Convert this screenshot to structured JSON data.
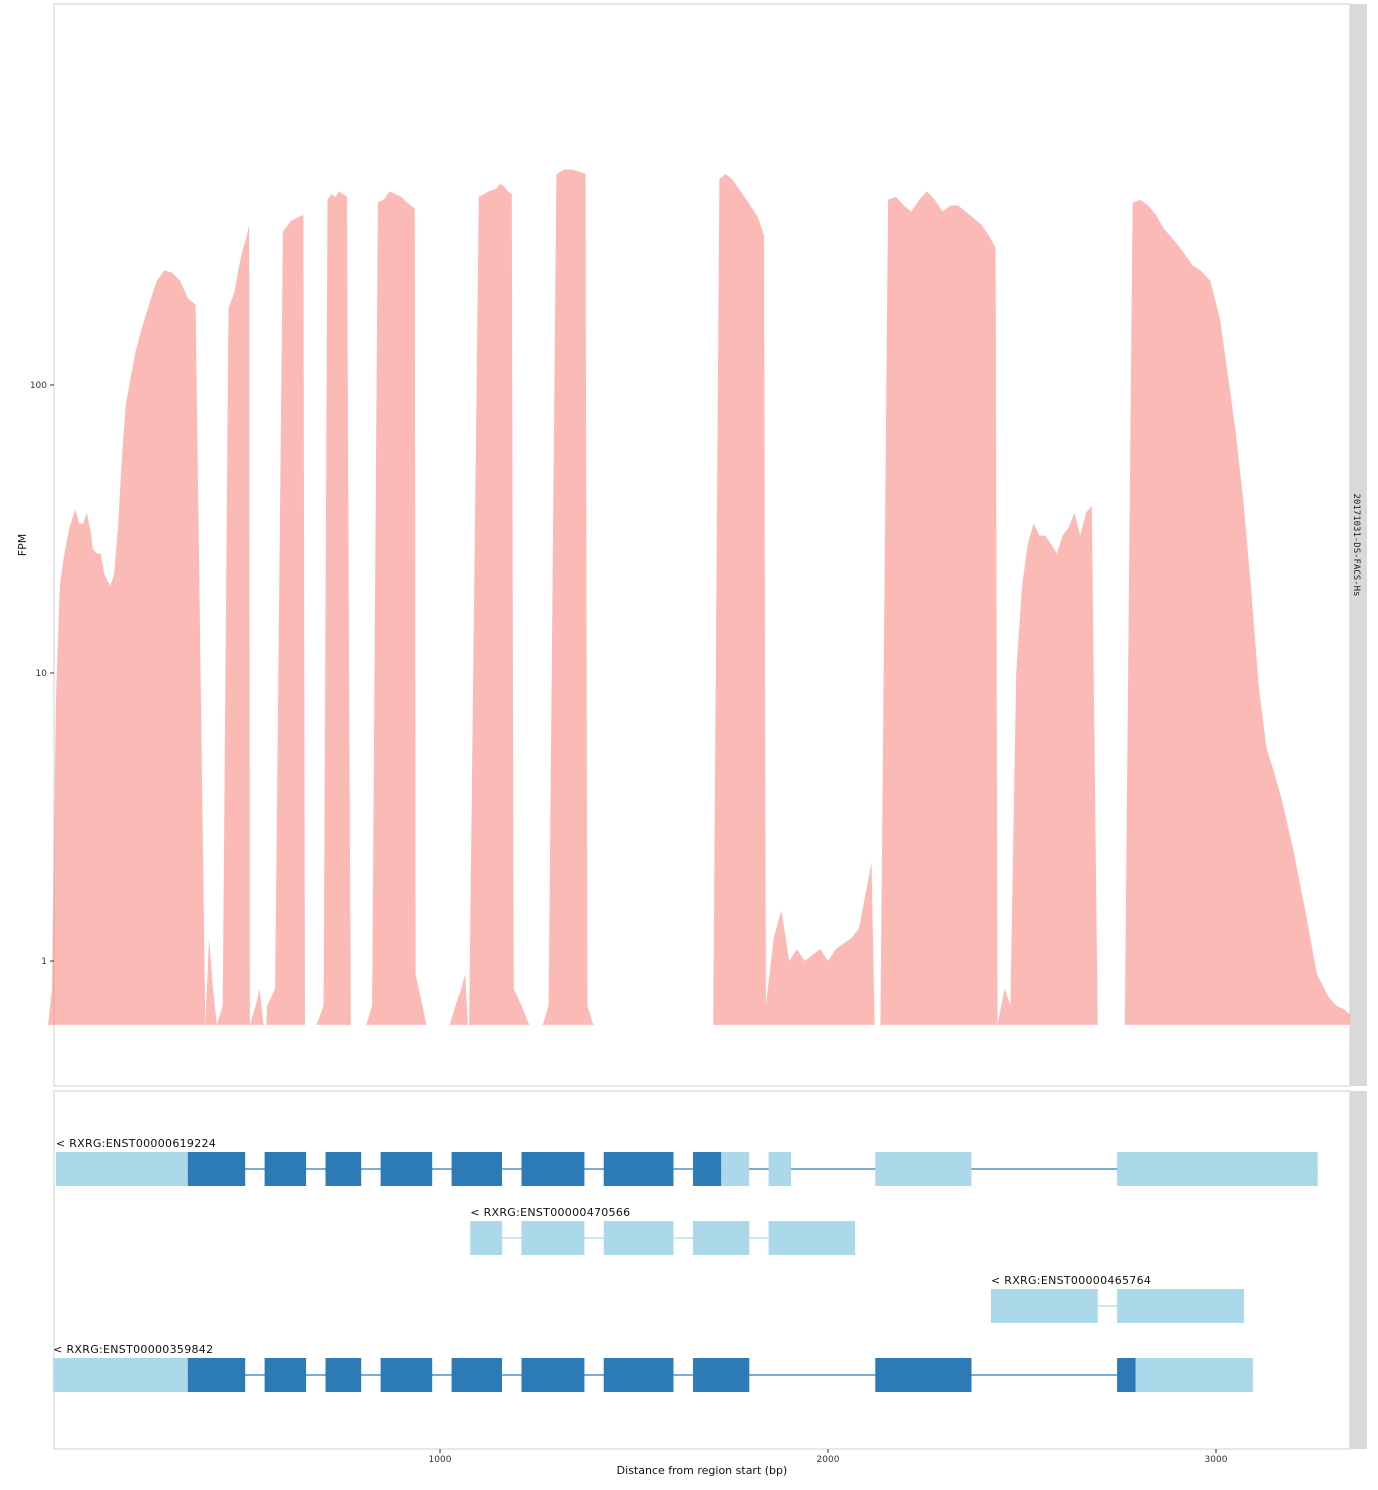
{
  "chart_data": [
    {
      "type": "area",
      "panel": "coverage",
      "title": "",
      "ylabel": "FPM",
      "xlabel": "",
      "yscale": "log10",
      "ylim": [
        0.6,
        600
      ],
      "xlim": [
        -45,
        3400
      ],
      "grid": false,
      "yticks": [
        {
          "value": 1,
          "label": "1"
        },
        {
          "value": 10,
          "label": "10"
        },
        {
          "value": 100,
          "label": "100"
        }
      ],
      "facet_label": "20171031-DS-FACS-Hs",
      "fill_color": "#F8766D",
      "fill_opacity": 0.5,
      "series": [
        {
          "x": [
            -10,
            0,
            10,
            20,
            30,
            45,
            60,
            70,
            80,
            90,
            95,
            100,
            105,
            115,
            125,
            135,
            150,
            160,
            170,
            180,
            190,
            205,
            215,
            230,
            250,
            270,
            290,
            310,
            330,
            350,
            370,
            395,
            405,
            415,
            425,
            440,
            455,
            470,
            480,
            490,
            500,
            508,
            510,
            525,
            535,
            545,
            552,
            555,
            575,
            595,
            615,
            630,
            648,
            652,
            664,
            670,
            680,
            682,
            700,
            710,
            720,
            730,
            740,
            750,
            760,
            770,
            772,
            790,
            800,
            808,
            810,
            825,
            840,
            855,
            870,
            885,
            900,
            915,
            925,
            935,
            937,
            945,
            955,
            965,
            975,
            985,
            995,
            1005,
            1015,
            1025,
            1040,
            1055,
            1065,
            1072,
            1075,
            1100,
            1125,
            1145,
            1155,
            1165,
            1175,
            1185,
            1190,
            1210,
            1230,
            1245,
            1262,
            1265,
            1280,
            1300,
            1320,
            1340,
            1360,
            1375,
            1380,
            1395,
            1410,
            1430,
            1450,
            1470,
            1475,
            1495,
            1515,
            1535,
            1550,
            1565,
            1580,
            1595,
            1607,
            1612,
            1627,
            1642,
            1657,
            1672,
            1685,
            1688,
            1704,
            1720,
            1736,
            1752,
            1770,
            1790,
            1805,
            1820,
            1835,
            1840,
            1860,
            1880,
            1900,
            1920,
            1940,
            1960,
            1980,
            2000,
            2020,
            2040,
            2060,
            2080,
            2100,
            2112,
            2120,
            2130,
            2135,
            2155,
            2175,
            2195,
            2215,
            2235,
            2255,
            2275,
            2295,
            2315,
            2335,
            2355,
            2375,
            2395,
            2415,
            2432,
            2437,
            2455,
            2470,
            2485,
            2500,
            2515,
            2530,
            2545,
            2560,
            2575,
            2590,
            2605,
            2620,
            2635,
            2650,
            2665,
            2680,
            2695,
            2710,
            2730,
            2745,
            2758,
            2765,
            2785,
            2805,
            2825,
            2845,
            2865,
            2890,
            2915,
            2940,
            2960,
            2985,
            3010,
            3030,
            3050,
            3070,
            3090,
            3110,
            3130,
            3150,
            3170,
            3200,
            3230,
            3260,
            3290,
            3310,
            3330,
            3340,
            3350,
            3362
          ],
          "y": [
            0.6,
            0.8,
            8,
            20,
            25,
            32,
            37,
            33,
            33,
            36,
            33,
            31,
            27,
            26,
            26,
            22,
            20,
            22,
            32,
            55,
            85,
            110,
            130,
            155,
            190,
            230,
            250,
            245,
            230,
            200,
            190,
            0.6,
            1.2,
            0.8,
            0.6,
            0.7,
            185,
            210,
            250,
            290,
            320,
            360,
            0.6,
            0.7,
            0.8,
            0.6,
            0.6,
            0.7,
            0.8,
            340,
            370,
            380,
            390,
            0.6,
            0.6,
            0.6,
            0.6,
            0.6,
            0.7,
            440,
            460,
            450,
            470,
            460,
            450,
            0.6,
            0.6,
            0.6,
            0.6,
            0.6,
            0.6,
            0.7,
            430,
            440,
            470,
            460,
            450,
            430,
            420,
            410,
            0.9,
            0.8,
            0.7,
            0.6,
            0.6,
            0.6,
            0.6,
            0.6,
            0.6,
            0.6,
            0.7,
            0.8,
            0.9,
            0.6,
            0.6,
            450,
            470,
            480,
            500,
            490,
            470,
            460,
            0.8,
            0.7,
            0.6,
            0.6,
            0.6,
            0.6,
            0.7,
            540,
            560,
            560,
            550,
            540,
            0.7,
            0.6,
            0.6,
            0.6,
            0.6,
            0.6,
            0.6,
            0.6,
            0.6,
            0.6,
            0.6,
            0.6,
            0.6,
            0.6,
            0.6,
            0.6,
            0.6,
            0.6,
            0.6,
            0.6,
            0.6,
            0.6,
            0.6,
            520,
            540,
            520,
            480,
            440,
            410,
            380,
            330,
            0.7,
            1.2,
            1.5,
            1.0,
            1.1,
            1.0,
            1.05,
            1.1,
            1.0,
            1.1,
            1.15,
            1.2,
            1.3,
            1.8,
            2.2,
            0.6,
            0.6,
            0.6,
            440,
            450,
            420,
            400,
            440,
            470,
            440,
            400,
            420,
            420,
            400,
            380,
            360,
            330,
            300,
            0.6,
            0.8,
            0.7,
            10,
            20,
            28,
            33,
            30,
            30,
            28,
            26,
            30,
            32,
            36,
            30,
            36,
            38,
            0.6,
            0.6,
            0.6,
            0.6,
            0.6,
            0.6,
            430,
            440,
            420,
            390,
            350,
            320,
            290,
            260,
            250,
            230,
            170,
            110,
            70,
            40,
            20,
            9,
            5.5,
            4.5,
            3.6,
            2.4,
            1.5,
            0.9,
            0.75,
            0.7,
            0.68,
            0.66,
            0.65,
            0.62
          ]
        }
      ]
    },
    {
      "type": "gene-model",
      "panel": "transcripts",
      "xlabel": "Distance from region start (bp)",
      "xlim": [
        -45,
        3400
      ],
      "xticks": [
        {
          "value": 1000,
          "label": "1000"
        },
        {
          "value": 2000,
          "label": "2000"
        },
        {
          "value": 3000,
          "label": "3000"
        }
      ],
      "colors": {
        "coding": "#2C7BB6",
        "utr": "#ABD9E9"
      },
      "transcripts": [
        {
          "label": "< RXRG:ENST00000619224",
          "exons": [
            {
              "start": 10,
              "end": 350,
              "kind": "utr"
            },
            {
              "start": 350,
              "end": 498,
              "kind": "coding"
            },
            {
              "start": 548,
              "end": 655,
              "kind": "coding"
            },
            {
              "start": 705,
              "end": 797,
              "kind": "coding"
            },
            {
              "start": 847,
              "end": 980,
              "kind": "coding"
            },
            {
              "start": 1030,
              "end": 1160,
              "kind": "coding"
            },
            {
              "start": 1210,
              "end": 1372,
              "kind": "coding"
            },
            {
              "start": 1422,
              "end": 1602,
              "kind": "coding"
            },
            {
              "start": 1652,
              "end": 1725,
              "kind": "coding"
            },
            {
              "start": 1725,
              "end": 1797,
              "kind": "utr"
            },
            {
              "start": 1847,
              "end": 1905,
              "kind": "utr"
            },
            {
              "start": 2122,
              "end": 2370,
              "kind": "utr"
            },
            {
              "start": 2745,
              "end": 3262,
              "kind": "utr"
            }
          ]
        },
        {
          "label": "< RXRG:ENST00000470566",
          "exons": [
            {
              "start": 1078,
              "end": 1160,
              "kind": "utr"
            },
            {
              "start": 1210,
              "end": 1372,
              "kind": "utr"
            },
            {
              "start": 1422,
              "end": 1602,
              "kind": "utr"
            },
            {
              "start": 1652,
              "end": 1797,
              "kind": "utr"
            },
            {
              "start": 1847,
              "end": 2070,
              "kind": "utr"
            }
          ]
        },
        {
          "label": "< RXRG:ENST00000465764",
          "exons": [
            {
              "start": 2420,
              "end": 2695,
              "kind": "utr"
            },
            {
              "start": 2745,
              "end": 3072,
              "kind": "utr"
            }
          ]
        },
        {
          "label": "< RXRG:ENST00000359842",
          "exons": [
            {
              "start": 3,
              "end": 350,
              "kind": "utr"
            },
            {
              "start": 350,
              "end": 498,
              "kind": "coding"
            },
            {
              "start": 548,
              "end": 655,
              "kind": "coding"
            },
            {
              "start": 705,
              "end": 797,
              "kind": "coding"
            },
            {
              "start": 847,
              "end": 980,
              "kind": "coding"
            },
            {
              "start": 1030,
              "end": 1160,
              "kind": "coding"
            },
            {
              "start": 1210,
              "end": 1372,
              "kind": "coding"
            },
            {
              "start": 1422,
              "end": 1602,
              "kind": "coding"
            },
            {
              "start": 1652,
              "end": 1797,
              "kind": "coding"
            },
            {
              "start": 2122,
              "end": 2370,
              "kind": "coding"
            },
            {
              "start": 2745,
              "end": 2793,
              "kind": "coding"
            },
            {
              "start": 2793,
              "end": 3095,
              "kind": "utr"
            }
          ]
        }
      ]
    }
  ]
}
